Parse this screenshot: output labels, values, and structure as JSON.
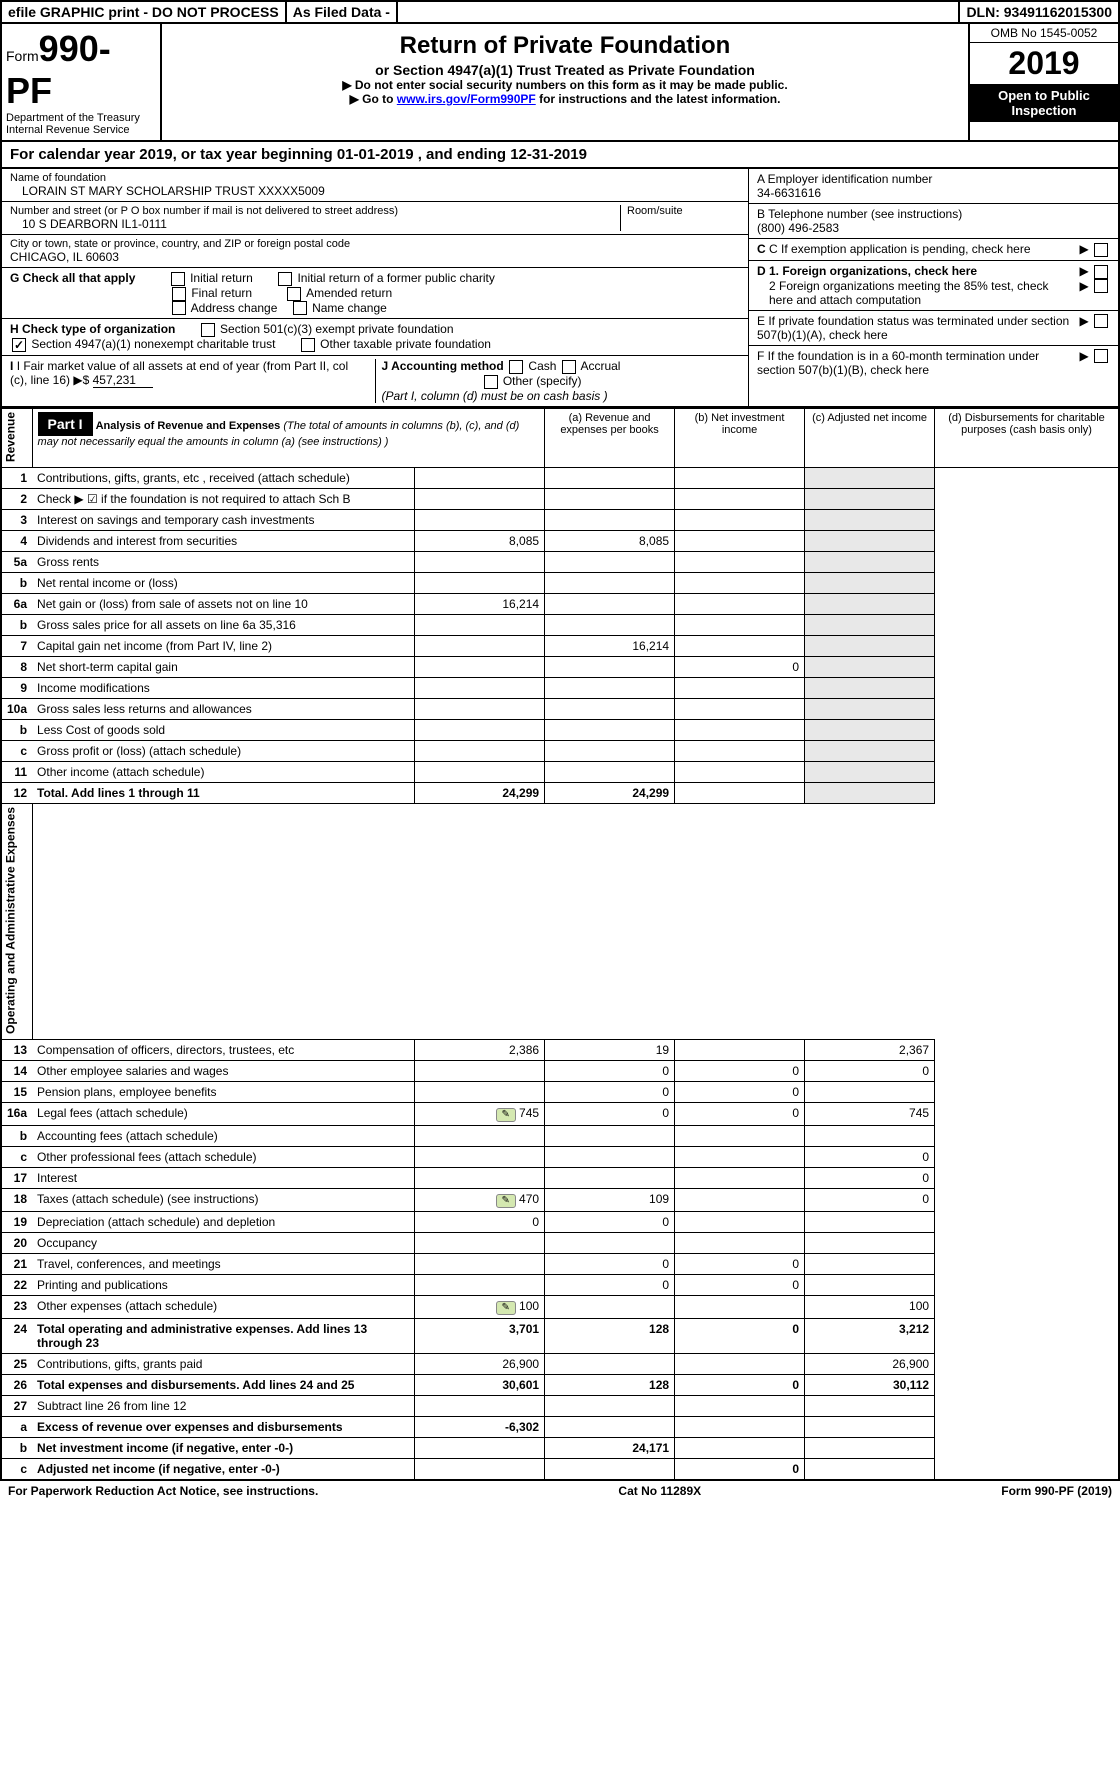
{
  "top_bar": {
    "efile": "efile GRAPHIC print - DO NOT PROCESS",
    "as_filed": "As Filed Data -",
    "dln": "DLN: 93491162015300"
  },
  "header": {
    "form_prefix": "Form",
    "form_number": "990-PF",
    "dept": "Department of the Treasury",
    "irs": "Internal Revenue Service",
    "title": "Return of Private Foundation",
    "subtitle": "or Section 4947(a)(1) Trust Treated as Private Foundation",
    "instr1": "▶ Do not enter social security numbers on this form as it may be made public.",
    "instr2_prefix": "▶ Go to ",
    "instr2_link": "www.irs.gov/Form990PF",
    "instr2_suffix": " for instructions and the latest information.",
    "omb": "OMB No 1545-0052",
    "year": "2019",
    "open_public": "Open to Public Inspection"
  },
  "cal_year": {
    "prefix": "For calendar year 2019, or tax year beginning ",
    "begin": "01-01-2019",
    "mid": " , and ending ",
    "end": "12-31-2019"
  },
  "foundation": {
    "name_label": "Name of foundation",
    "name": "LORAIN ST MARY SCHOLARSHIP TRUST XXXXX5009",
    "addr_label": "Number and street (or P O  box number if mail is not delivered to street address)",
    "addr": "10 S DEARBORN IL1-0111",
    "room_label": "Room/suite",
    "city_label": "City or town, state or province, country, and ZIP or foreign postal code",
    "city": "CHICAGO, IL  60603"
  },
  "section_a": {
    "label": "A Employer identification number",
    "value": "34-6631616"
  },
  "section_b": {
    "label": "B Telephone number (see instructions)",
    "value": "(800) 496-2583"
  },
  "section_c": {
    "label": "C If exemption application is pending, check here"
  },
  "section_d1": {
    "label": "D 1. Foreign organizations, check here"
  },
  "section_d2": {
    "label": "2 Foreign organizations meeting the 85% test, check here and attach computation"
  },
  "section_e": {
    "label": "E  If private foundation status was terminated under section 507(b)(1)(A), check here"
  },
  "section_f": {
    "label": "F  If the foundation is in a 60-month termination under section 507(b)(1)(B), check here"
  },
  "section_g": {
    "label": "G Check all that apply",
    "opts": [
      "Initial return",
      "Initial return of a former public charity",
      "Final return",
      "Amended return",
      "Address change",
      "Name change"
    ]
  },
  "section_h": {
    "label": "H Check type of organization",
    "opts": [
      "Section 501(c)(3) exempt private foundation",
      "Section 4947(a)(1) nonexempt charitable trust",
      "Other taxable private foundation"
    ]
  },
  "section_i": {
    "label": "I Fair market value of all assets at end of year (from Part II, col  (c), line 16) ▶$ ",
    "value": "457,231"
  },
  "section_j": {
    "label": "J Accounting method",
    "cash": "Cash",
    "accrual": "Accrual",
    "other": "Other (specify)",
    "note": "(Part I, column (d) must be on cash basis )"
  },
  "part1": {
    "label": "Part I",
    "title": "Analysis of Revenue and Expenses",
    "note": " (The total of amounts in columns (b), (c), and (d) may not necessarily equal the amounts in column (a) (see instructions) )",
    "cols": {
      "a": "(a) Revenue and expenses per books",
      "b": "(b) Net investment income",
      "c": "(c) Adjusted net income",
      "d": "(d) Disbursements for charitable purposes (cash basis only)"
    }
  },
  "vlabels": {
    "revenue": "Revenue",
    "expenses": "Operating and Administrative Expenses"
  },
  "rows": [
    {
      "n": "1",
      "d": "Contributions, gifts, grants, etc , received (attach schedule)"
    },
    {
      "n": "2",
      "d": "Check ▶ ☑ if the foundation is not required to attach Sch B"
    },
    {
      "n": "3",
      "d": "Interest on savings and temporary cash investments"
    },
    {
      "n": "4",
      "d": "Dividends and interest from securities",
      "a": "8,085",
      "b": "8,085"
    },
    {
      "n": "5a",
      "d": "Gross rents"
    },
    {
      "n": "b",
      "d": "Net rental income or (loss)"
    },
    {
      "n": "6a",
      "d": "Net gain or (loss) from sale of assets not on line 10",
      "a": "16,214"
    },
    {
      "n": "b",
      "d": "Gross sales price for all assets on line 6a           35,316"
    },
    {
      "n": "7",
      "d": "Capital gain net income (from Part IV, line 2)",
      "b": "16,214"
    },
    {
      "n": "8",
      "d": "Net short-term capital gain",
      "c": "0"
    },
    {
      "n": "9",
      "d": "Income modifications"
    },
    {
      "n": "10a",
      "d": "Gross sales less returns and allowances"
    },
    {
      "n": "b",
      "d": "Less  Cost of goods sold"
    },
    {
      "n": "c",
      "d": "Gross profit or (loss) (attach schedule)"
    },
    {
      "n": "11",
      "d": "Other income (attach schedule)"
    },
    {
      "n": "12",
      "d": "Total. Add lines 1 through 11",
      "a": "24,299",
      "b": "24,299",
      "bold": true
    }
  ],
  "exp_rows": [
    {
      "n": "13",
      "d": "Compensation of officers, directors, trustees, etc",
      "a": "2,386",
      "b": "19",
      "dd": "2,367"
    },
    {
      "n": "14",
      "d": "Other employee salaries and wages",
      "b": "0",
      "c": "0",
      "dd": "0"
    },
    {
      "n": "15",
      "d": "Pension plans, employee benefits",
      "b": "0",
      "c": "0"
    },
    {
      "n": "16a",
      "d": "Legal fees (attach schedule)",
      "icon": true,
      "a": "745",
      "b": "0",
      "c": "0",
      "dd": "745"
    },
    {
      "n": "b",
      "d": "Accounting fees (attach schedule)"
    },
    {
      "n": "c",
      "d": "Other professional fees (attach schedule)",
      "dd": "0"
    },
    {
      "n": "17",
      "d": "Interest",
      "dd": "0"
    },
    {
      "n": "18",
      "d": "Taxes (attach schedule) (see instructions)",
      "icon": true,
      "a": "470",
      "b": "109",
      "dd": "0"
    },
    {
      "n": "19",
      "d": "Depreciation (attach schedule) and depletion",
      "a": "0",
      "b": "0"
    },
    {
      "n": "20",
      "d": "Occupancy"
    },
    {
      "n": "21",
      "d": "Travel, conferences, and meetings",
      "b": "0",
      "c": "0"
    },
    {
      "n": "22",
      "d": "Printing and publications",
      "b": "0",
      "c": "0"
    },
    {
      "n": "23",
      "d": "Other expenses (attach schedule)",
      "icon": true,
      "a": "100",
      "dd": "100"
    },
    {
      "n": "24",
      "d": "Total operating and administrative expenses. Add lines 13 through 23",
      "a": "3,701",
      "b": "128",
      "c": "0",
      "dd": "3,212",
      "bold": true
    },
    {
      "n": "25",
      "d": "Contributions, gifts, grants paid",
      "a": "26,900",
      "dd": "26,900"
    },
    {
      "n": "26",
      "d": "Total expenses and disbursements. Add lines 24 and 25",
      "a": "30,601",
      "b": "128",
      "c": "0",
      "dd": "30,112",
      "bold": true
    }
  ],
  "final_rows": [
    {
      "n": "27",
      "d": "Subtract line 26 from line 12"
    },
    {
      "n": "a",
      "d": "Excess of revenue over expenses and disbursements",
      "a": "-6,302",
      "bold": true
    },
    {
      "n": "b",
      "d": "Net investment income (if negative, enter -0-)",
      "b": "24,171",
      "bold": true
    },
    {
      "n": "c",
      "d": "Adjusted net income (if negative, enter -0-)",
      "c": "0",
      "bold": true
    }
  ],
  "footer": {
    "left": "For Paperwork Reduction Act Notice, see instructions.",
    "center": "Cat  No  11289X",
    "right": "Form 990-PF (2019)"
  }
}
